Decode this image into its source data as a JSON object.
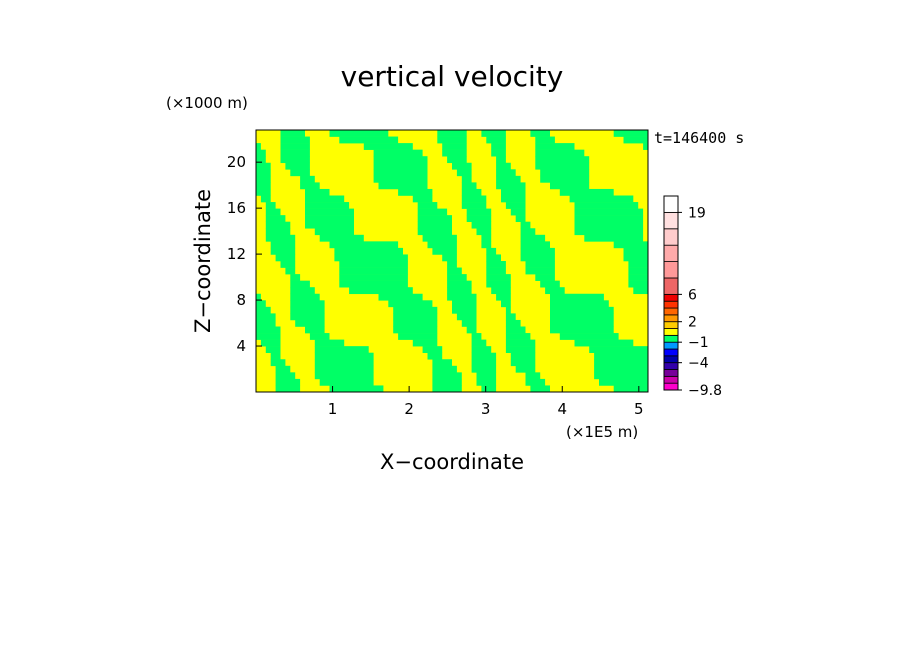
{
  "chart_data": {
    "type": "heatmap",
    "title": "vertical velocity",
    "xlabel": "X−coordinate",
    "ylabel": "Z−coordinate",
    "x_unit": "(×1E5 m)",
    "y_unit": "(×1000 m)",
    "time_label": "t=146400 s",
    "xlim": [
      0,
      5.12
    ],
    "ylim": [
      0,
      22.8
    ],
    "x_ticks": [
      1,
      2,
      3,
      4,
      5
    ],
    "x_tick_labels": [
      "1",
      "2",
      "3",
      "4",
      "5"
    ],
    "y_ticks": [
      4,
      8,
      12,
      16,
      20
    ],
    "y_tick_labels": [
      "4",
      "8",
      "12",
      "16",
      "20"
    ],
    "fill_colors": {
      "positive_small": "#ffff00",
      "negative_small": "#00ff66"
    },
    "colorbar": {
      "levels": [
        -9.8,
        -8,
        -6,
        -5,
        -4,
        -3,
        -2,
        -1,
        0,
        1,
        2,
        3,
        4,
        5,
        6,
        8,
        10,
        13,
        16,
        19,
        22
      ],
      "colors": [
        "#ff00cc",
        "#cc00aa",
        "#770099",
        "#3300aa",
        "#0000aa",
        "#0000ff",
        "#0099ff",
        "#00ff66",
        "#ffff00",
        "#ffcc00",
        "#ff9900",
        "#ff6600",
        "#ff3300",
        "#ee0000",
        "#ee6666",
        "#ff9999",
        "#ffaaaa",
        "#ffcccc",
        "#ffe0e0",
        "#ffffff"
      ],
      "tick_labels": [
        "19",
        "6",
        "2",
        "−1",
        "−4",
        "−9.8"
      ],
      "tick_values": [
        19,
        6,
        2,
        -1,
        -4,
        -9.8
      ]
    }
  }
}
